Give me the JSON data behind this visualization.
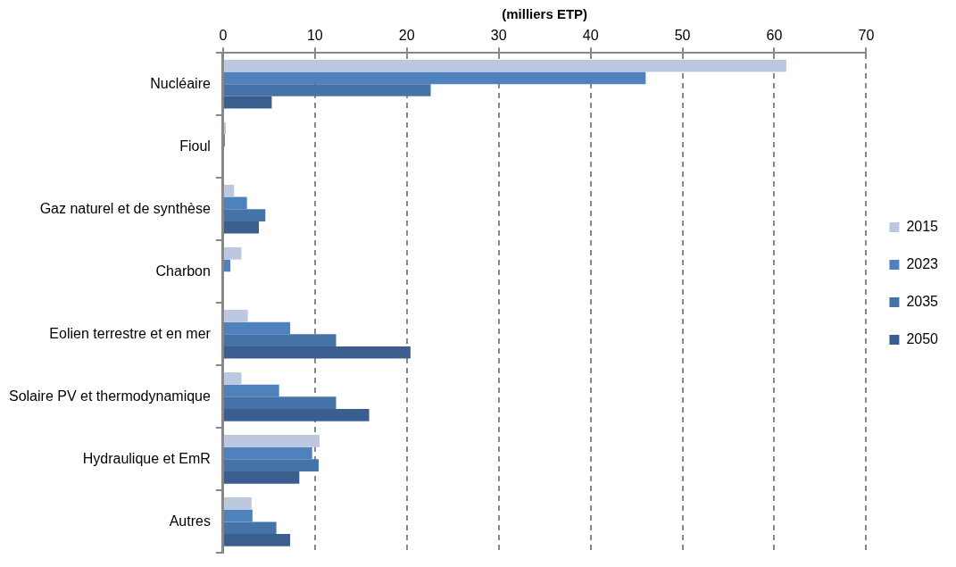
{
  "chart_data": {
    "type": "bar",
    "orientation": "horizontal",
    "xlabel": "(milliers ETP)",
    "categories": [
      "Nucléaire",
      "Fioul",
      "Gaz naturel et de synthèse",
      "Charbon",
      "Eolien terrestre et en mer",
      "Solaire PV et thermodynamique",
      "Hydraulique et EmR",
      "Autres"
    ],
    "series": [
      {
        "name": "2015",
        "color": "#bcc8e0",
        "values": [
          61.3,
          0.3,
          1.2,
          2.0,
          2.7,
          2.0,
          10.5,
          3.1
        ]
      },
      {
        "name": "2023",
        "color": "#4f81bd",
        "values": [
          46.0,
          0.2,
          2.6,
          0.8,
          7.3,
          6.1,
          9.7,
          3.2
        ]
      },
      {
        "name": "2035",
        "color": "#4573a7",
        "values": [
          22.6,
          0,
          4.6,
          0,
          12.3,
          12.3,
          10.4,
          5.8
        ]
      },
      {
        "name": "2050",
        "color": "#3a5f8f",
        "values": [
          5.3,
          0,
          3.9,
          0,
          20.4,
          15.9,
          8.3,
          7.3
        ]
      }
    ],
    "xlim": [
      0,
      70
    ],
    "xticks": [
      0,
      10,
      20,
      30,
      40,
      50,
      60,
      70
    ],
    "grid": "x",
    "line_style": "dashed",
    "legend": "right"
  }
}
